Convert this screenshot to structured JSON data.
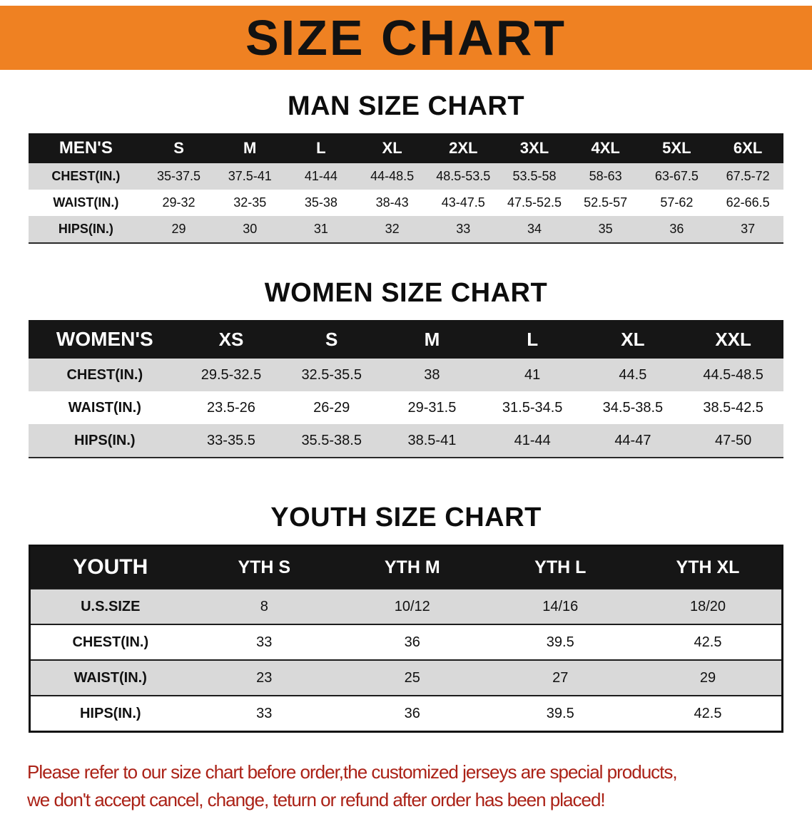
{
  "banner": {
    "title": "SIZE CHART"
  },
  "colors": {
    "banner_bg": "#ef8122",
    "table_header_bg": "#161616",
    "row_stripe": "#d9d9d9",
    "disclaimer_text": "#ab2217"
  },
  "sections": [
    {
      "id": "men",
      "heading": "MAN SIZE CHART",
      "table": {
        "header": [
          "MEN'S",
          "S",
          "M",
          "L",
          "XL",
          "2XL",
          "3XL",
          "4XL",
          "5XL",
          "6XL"
        ],
        "rows": [
          [
            "CHEST(IN.)",
            "35-37.5",
            "37.5-41",
            "41-44",
            "44-48.5",
            "48.5-53.5",
            "53.5-58",
            "58-63",
            "63-67.5",
            "67.5-72"
          ],
          [
            "WAIST(IN.)",
            "29-32",
            "32-35",
            "35-38",
            "38-43",
            "43-47.5",
            "47.5-52.5",
            "52.5-57",
            "57-62",
            "62-66.5"
          ],
          [
            "HIPS(IN.)",
            "29",
            "30",
            "31",
            "32",
            "33",
            "34",
            "35",
            "36",
            "37"
          ]
        ]
      }
    },
    {
      "id": "women",
      "heading": "WOMEN SIZE CHART",
      "table": {
        "header": [
          "WOMEN'S",
          "XS",
          "S",
          "M",
          "L",
          "XL",
          "XXL"
        ],
        "rows": [
          [
            "CHEST(IN.)",
            "29.5-32.5",
            "32.5-35.5",
            "38",
            "41",
            "44.5",
            "44.5-48.5"
          ],
          [
            "WAIST(IN.)",
            "23.5-26",
            "26-29",
            "29-31.5",
            "31.5-34.5",
            "34.5-38.5",
            "38.5-42.5"
          ],
          [
            "HIPS(IN.)",
            "33-35.5",
            "35.5-38.5",
            "38.5-41",
            "41-44",
            "44-47",
            "47-50"
          ]
        ]
      }
    },
    {
      "id": "youth",
      "heading": "YOUTH SIZE CHART",
      "table": {
        "header": [
          "YOUTH",
          "YTH S",
          "YTH M",
          "YTH L",
          "YTH XL"
        ],
        "rows": [
          [
            "U.S.SIZE",
            "8",
            "10/12",
            "14/16",
            "18/20"
          ],
          [
            "CHEST(IN.)",
            "33",
            "36",
            "39.5",
            "42.5"
          ],
          [
            "WAIST(IN.)",
            "23",
            "25",
            "27",
            "29"
          ],
          [
            "HIPS(IN.)",
            "33",
            "36",
            "39.5",
            "42.5"
          ]
        ]
      }
    }
  ],
  "disclaimer": {
    "line1": "Please refer to our size chart before order,the customized jerseys are special products,",
    "line2": "we don't accept cancel, change, teturn or refund after order has been placed!"
  }
}
